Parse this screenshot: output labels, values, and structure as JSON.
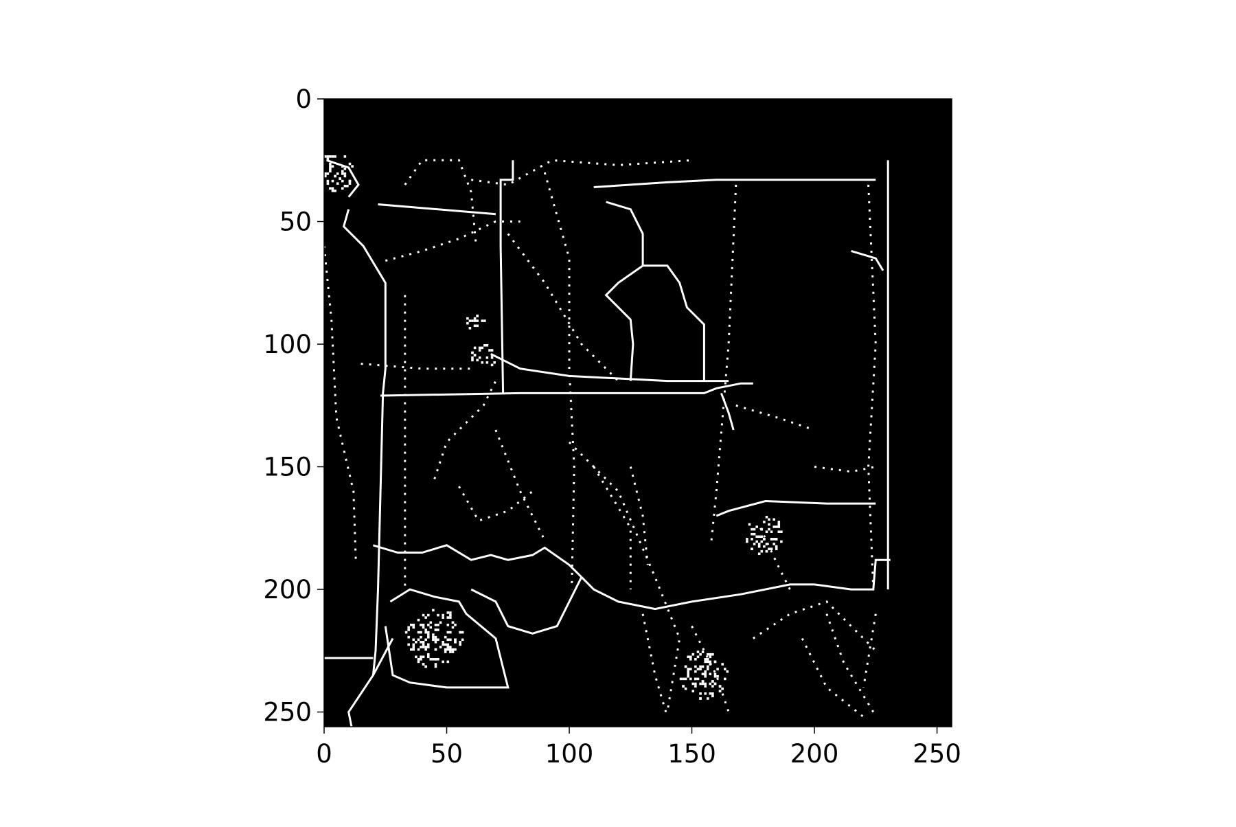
{
  "chart_data": {
    "type": "heatmap",
    "title": "",
    "xlabel": "",
    "ylabel": "",
    "image_size": [
      256,
      256
    ],
    "xlim": [
      0,
      256
    ],
    "ylim": [
      256,
      0
    ],
    "xticks": [
      0,
      50,
      100,
      150,
      200,
      250
    ],
    "yticks": [
      0,
      50,
      100,
      150,
      200,
      250
    ],
    "xtick_labels": [
      "0",
      "50",
      "100",
      "150",
      "200",
      "250"
    ],
    "ytick_labels": [
      "0",
      "50",
      "100",
      "150",
      "200",
      "250"
    ],
    "colormap": "gray",
    "background": "#000000",
    "foreground": "#ffffff",
    "grid": false,
    "legend": "none",
    "features": {
      "solid_lines": [
        [
          [
            77,
            25
          ],
          [
            77,
            33
          ],
          [
            72,
            33
          ],
          [
            72,
            60
          ],
          [
            73,
            120
          ]
        ],
        [
          [
            230,
            25
          ],
          [
            230,
            200
          ]
        ],
        [
          [
            22,
            43
          ],
          [
            70,
            47
          ]
        ],
        [
          [
            10,
            45
          ],
          [
            8,
            52
          ],
          [
            16,
            60
          ],
          [
            25,
            75
          ],
          [
            25,
            110
          ],
          [
            24,
            120
          ],
          [
            22,
            200
          ],
          [
            21,
            225
          ],
          [
            20,
            235
          ]
        ],
        [
          [
            23,
            121
          ],
          [
            80,
            120
          ],
          [
            155,
            120
          ],
          [
            160,
            118
          ],
          [
            170,
            116
          ],
          [
            175,
            116
          ]
        ],
        [
          [
            68,
            104
          ],
          [
            80,
            110
          ],
          [
            100,
            113
          ],
          [
            140,
            115
          ],
          [
            165,
            115
          ]
        ],
        [
          [
            110,
            36
          ],
          [
            140,
            34
          ],
          [
            160,
            33
          ],
          [
            215,
            33
          ],
          [
            225,
            33
          ]
        ],
        [
          [
            115,
            42
          ],
          [
            125,
            45
          ],
          [
            130,
            55
          ],
          [
            130,
            68
          ],
          [
            120,
            75
          ],
          [
            115,
            80
          ],
          [
            125,
            90
          ],
          [
            126,
            100
          ],
          [
            125,
            115
          ]
        ],
        [
          [
            130,
            68
          ],
          [
            140,
            68
          ],
          [
            145,
            75
          ],
          [
            148,
            85
          ],
          [
            155,
            92
          ],
          [
            155,
            115
          ]
        ],
        [
          [
            162,
            120
          ],
          [
            165,
            128
          ],
          [
            167,
            135
          ]
        ],
        [
          [
            20,
            182
          ],
          [
            30,
            185
          ],
          [
            40,
            185
          ],
          [
            50,
            182
          ],
          [
            60,
            188
          ],
          [
            68,
            186
          ],
          [
            75,
            188
          ],
          [
            85,
            186
          ],
          [
            90,
            183
          ],
          [
            100,
            190
          ],
          [
            105,
            195
          ],
          [
            110,
            200
          ],
          [
            120,
            205
          ],
          [
            135,
            208
          ],
          [
            150,
            205
          ],
          [
            170,
            202
          ],
          [
            190,
            198
          ],
          [
            200,
            198
          ],
          [
            215,
            200
          ],
          [
            224,
            200
          ],
          [
            225,
            188
          ],
          [
            231,
            188
          ]
        ],
        [
          [
            105,
            195
          ],
          [
            95,
            215
          ],
          [
            85,
            218
          ],
          [
            75,
            215
          ],
          [
            70,
            205
          ],
          [
            60,
            200
          ]
        ],
        [
          [
            27,
            205
          ],
          [
            35,
            200
          ],
          [
            45,
            203
          ],
          [
            55,
            205
          ],
          [
            58,
            210
          ],
          [
            70,
            220
          ],
          [
            75,
            240
          ],
          [
            50,
            240
          ],
          [
            35,
            238
          ],
          [
            28,
            235
          ],
          [
            25,
            215
          ]
        ],
        [
          [
            0,
            228
          ],
          [
            20,
            228
          ]
        ],
        [
          [
            12,
            260
          ],
          [
            10,
            250
          ],
          [
            20,
            235
          ],
          [
            28,
            220
          ]
        ],
        [
          [
            160,
            170
          ],
          [
            165,
            168
          ],
          [
            180,
            164
          ],
          [
            205,
            165
          ],
          [
            225,
            165
          ]
        ],
        [
          [
            215,
            62
          ],
          [
            225,
            65
          ],
          [
            228,
            70
          ]
        ],
        [
          [
            1,
            25
          ],
          [
            10,
            28
          ],
          [
            14,
            35
          ],
          [
            10,
            40
          ]
        ]
      ],
      "dotted_lines": [
        [
          [
            0,
            60
          ],
          [
            3,
            90
          ],
          [
            5,
            130
          ],
          [
            12,
            160
          ],
          [
            13,
            190
          ]
        ],
        [
          [
            33,
            80
          ],
          [
            33,
            200
          ]
        ],
        [
          [
            33,
            35
          ],
          [
            40,
            25
          ],
          [
            55,
            25
          ],
          [
            60,
            38
          ],
          [
            62,
            60
          ]
        ],
        [
          [
            25,
            66
          ],
          [
            40,
            62
          ],
          [
            55,
            57
          ],
          [
            70,
            50
          ],
          [
            80,
            50
          ]
        ],
        [
          [
            60,
            33
          ],
          [
            75,
            35
          ],
          [
            93,
            25
          ],
          [
            120,
            27
          ],
          [
            150,
            25
          ]
        ],
        [
          [
            75,
            55
          ],
          [
            90,
            75
          ],
          [
            105,
            100
          ],
          [
            120,
            115
          ]
        ],
        [
          [
            90,
            30
          ],
          [
            100,
            65
          ],
          [
            100,
            110
          ],
          [
            102,
            150
          ],
          [
            101,
            200
          ]
        ],
        [
          [
            168,
            35
          ],
          [
            165,
            100
          ],
          [
            160,
            160
          ],
          [
            158,
            180
          ]
        ],
        [
          [
            222,
            35
          ],
          [
            225,
            100
          ],
          [
            222,
            150
          ],
          [
            224,
            200
          ]
        ],
        [
          [
            15,
            108
          ],
          [
            40,
            110
          ],
          [
            60,
            110
          ]
        ],
        [
          [
            168,
            125
          ],
          [
            185,
            130
          ],
          [
            200,
            135
          ]
        ],
        [
          [
            45,
            155
          ],
          [
            50,
            140
          ],
          [
            65,
            125
          ],
          [
            70,
            115
          ]
        ],
        [
          [
            70,
            135
          ],
          [
            80,
            160
          ],
          [
            90,
            180
          ]
        ],
        [
          [
            100,
            140
          ],
          [
            120,
            160
          ],
          [
            135,
            195
          ],
          [
            145,
            220
          ],
          [
            140,
            250
          ]
        ],
        [
          [
            125,
            150
          ],
          [
            130,
            170
          ],
          [
            132,
            190
          ]
        ],
        [
          [
            110,
            150
          ],
          [
            125,
            175
          ],
          [
            125,
            200
          ]
        ],
        [
          [
            130,
            210
          ],
          [
            135,
            235
          ],
          [
            140,
            252
          ]
        ],
        [
          [
            150,
            215
          ],
          [
            160,
            235
          ],
          [
            165,
            250
          ]
        ],
        [
          [
            175,
            220
          ],
          [
            190,
            210
          ],
          [
            205,
            205
          ],
          [
            215,
            215
          ],
          [
            225,
            225
          ]
        ],
        [
          [
            195,
            220
          ],
          [
            205,
            240
          ],
          [
            220,
            252
          ]
        ],
        [
          [
            200,
            150
          ],
          [
            215,
            152
          ],
          [
            225,
            150
          ]
        ],
        [
          [
            205,
            210
          ],
          [
            212,
            230
          ],
          [
            224,
            250
          ]
        ],
        [
          [
            225,
            210
          ],
          [
            220,
            240
          ]
        ],
        [
          [
            178,
            175
          ],
          [
            185,
            190
          ],
          [
            190,
            200
          ]
        ],
        [
          [
            55,
            158
          ],
          [
            63,
            172
          ],
          [
            75,
            168
          ],
          [
            85,
            160
          ]
        ]
      ],
      "dense_patches": [
        [
          [
            4,
            30
          ],
          8
        ],
        [
          [
            62,
            90
          ],
          4
        ],
        [
          [
            65,
            105
          ],
          5
        ],
        [
          [
            180,
            178
          ],
          8
        ],
        [
          [
            45,
            220
          ],
          12
        ],
        [
          [
            155,
            235
          ],
          10
        ]
      ]
    }
  }
}
